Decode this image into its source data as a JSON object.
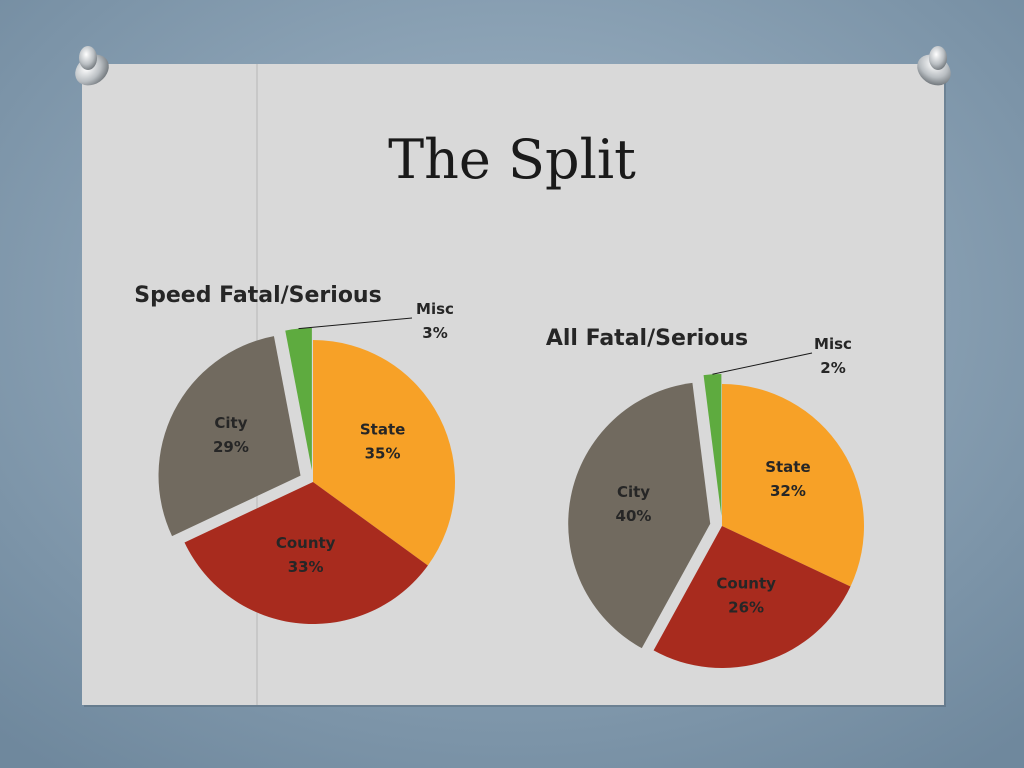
{
  "slide_title": "The Split",
  "chart_data": [
    {
      "type": "pie",
      "title": "Speed Fatal/Serious",
      "categories": [
        "State",
        "County",
        "City",
        "Misc"
      ],
      "values": [
        35,
        33,
        29,
        3
      ],
      "value_labels": [
        "35%",
        "33%",
        "29%",
        "3%"
      ],
      "colors": [
        "#f7a127",
        "#a82b1e",
        "#716a5f",
        "#5eab3f"
      ]
    },
    {
      "type": "pie",
      "title": "All Fatal/Serious",
      "categories": [
        "State",
        "County",
        "City",
        "Misc"
      ],
      "values": [
        32,
        26,
        40,
        2
      ],
      "value_labels": [
        "32%",
        "26%",
        "40%",
        "2%"
      ],
      "colors": [
        "#f7a127",
        "#a82b1e",
        "#716a5f",
        "#5eab3f"
      ]
    }
  ]
}
